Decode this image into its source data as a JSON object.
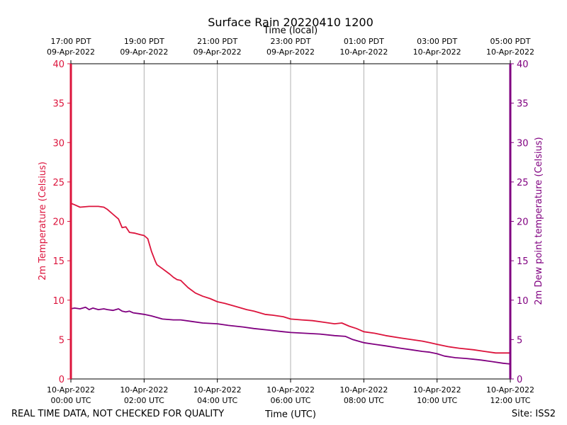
{
  "chart_data": {
    "type": "line",
    "title": "Surface Rain 20220410 1200",
    "top_axis_label": "Time (local)",
    "xlabel": "Time (UTC)",
    "ylabel_left": "2m Temperature (Celsius)",
    "ylabel_right": "2m Dew point temperature (Celsius)",
    "ylim": [
      0,
      40
    ],
    "xlim_hours": [
      0,
      12
    ],
    "y_ticks": [
      "0",
      "5",
      "10",
      "15",
      "20",
      "25",
      "30",
      "35",
      "40"
    ],
    "bottom_ticks": [
      {
        "hour": 0,
        "line1": "10-Apr-2022",
        "line2": "00:00 UTC"
      },
      {
        "hour": 2,
        "line1": "10-Apr-2022",
        "line2": "02:00 UTC"
      },
      {
        "hour": 4,
        "line1": "10-Apr-2022",
        "line2": "04:00 UTC"
      },
      {
        "hour": 6,
        "line1": "10-Apr-2022",
        "line2": "06:00 UTC"
      },
      {
        "hour": 8,
        "line1": "10-Apr-2022",
        "line2": "08:00 UTC"
      },
      {
        "hour": 10,
        "line1": "10-Apr-2022",
        "line2": "10:00 UTC"
      },
      {
        "hour": 12,
        "line1": "10-Apr-2022",
        "line2": "12:00 UTC"
      }
    ],
    "top_ticks": [
      {
        "hour": 0,
        "line1": "17:00 PDT",
        "line2": "09-Apr-2022"
      },
      {
        "hour": 2,
        "line1": "19:00 PDT",
        "line2": "09-Apr-2022"
      },
      {
        "hour": 4,
        "line1": "21:00 PDT",
        "line2": "09-Apr-2022"
      },
      {
        "hour": 6,
        "line1": "23:00 PDT",
        "line2": "09-Apr-2022"
      },
      {
        "hour": 8,
        "line1": "01:00 PDT",
        "line2": "10-Apr-2022"
      },
      {
        "hour": 10,
        "line1": "03:00 PDT",
        "line2": "10-Apr-2022"
      },
      {
        "hour": 12,
        "line1": "05:00 PDT",
        "line2": "10-Apr-2022"
      }
    ],
    "series": [
      {
        "name": "2m Temperature",
        "color": "#dc143c",
        "axis": "left",
        "x": [
          0.0,
          0.1,
          0.25,
          0.5,
          0.75,
          0.9,
          1.0,
          1.15,
          1.3,
          1.4,
          1.5,
          1.6,
          1.75,
          1.9,
          2.0,
          2.1,
          2.2,
          2.3,
          2.35,
          2.5,
          2.7,
          2.8,
          2.9,
          3.0,
          3.2,
          3.4,
          3.6,
          3.8,
          4.0,
          4.2,
          4.5,
          4.8,
          5.0,
          5.3,
          5.5,
          5.8,
          6.0,
          6.3,
          6.6,
          6.9,
          7.2,
          7.4,
          7.6,
          7.8,
          8.0,
          8.3,
          8.6,
          9.0,
          9.3,
          9.6,
          9.8,
          10.0,
          10.3,
          10.6,
          11.0,
          11.3,
          11.6,
          12.0
        ],
        "y": [
          22.3,
          22.1,
          21.8,
          21.9,
          21.9,
          21.8,
          21.5,
          20.9,
          20.3,
          19.2,
          19.3,
          18.6,
          18.5,
          18.3,
          18.2,
          17.8,
          16.2,
          15.0,
          14.5,
          14.0,
          13.3,
          12.9,
          12.6,
          12.5,
          11.6,
          10.9,
          10.5,
          10.2,
          9.8,
          9.6,
          9.2,
          8.8,
          8.6,
          8.2,
          8.1,
          7.9,
          7.6,
          7.5,
          7.4,
          7.2,
          7.0,
          7.1,
          6.7,
          6.4,
          6.0,
          5.8,
          5.5,
          5.2,
          5.0,
          4.8,
          4.6,
          4.4,
          4.1,
          3.9,
          3.7,
          3.5,
          3.3,
          3.3
        ]
      },
      {
        "name": "2m Dew point temperature",
        "color": "#800080",
        "axis": "right",
        "x": [
          0.0,
          0.1,
          0.25,
          0.4,
          0.5,
          0.6,
          0.75,
          0.9,
          1.0,
          1.15,
          1.3,
          1.4,
          1.5,
          1.6,
          1.7,
          1.85,
          2.0,
          2.2,
          2.5,
          2.8,
          3.0,
          3.3,
          3.6,
          4.0,
          4.3,
          4.7,
          5.0,
          5.4,
          5.8,
          6.0,
          6.4,
          6.8,
          7.2,
          7.5,
          7.7,
          8.0,
          8.3,
          8.6,
          9.0,
          9.3,
          9.6,
          9.8,
          10.0,
          10.2,
          10.5,
          10.8,
          11.0,
          11.2,
          11.5,
          11.8,
          12.0
        ],
        "y": [
          8.9,
          9.0,
          8.9,
          9.1,
          8.8,
          9.0,
          8.8,
          8.9,
          8.8,
          8.7,
          8.9,
          8.6,
          8.5,
          8.6,
          8.4,
          8.3,
          8.2,
          8.0,
          7.6,
          7.5,
          7.5,
          7.3,
          7.1,
          7.0,
          6.8,
          6.6,
          6.4,
          6.2,
          6.0,
          5.9,
          5.8,
          5.7,
          5.5,
          5.4,
          5.0,
          4.6,
          4.4,
          4.2,
          3.9,
          3.7,
          3.5,
          3.4,
          3.2,
          2.9,
          2.7,
          2.6,
          2.5,
          2.4,
          2.2,
          2.0,
          1.9
        ]
      }
    ],
    "annotations": {
      "disclaimer": "REAL TIME DATA, NOT CHECKED FOR QUALITY",
      "site": "Site: ISS2"
    },
    "grid": "vertical"
  }
}
